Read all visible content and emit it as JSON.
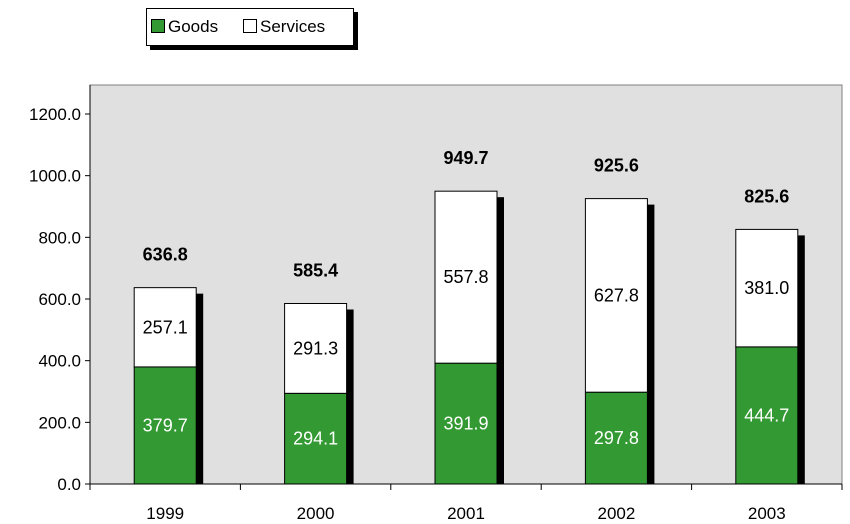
{
  "chart_data": {
    "type": "bar",
    "stacked": true,
    "categories": [
      "1999",
      "2000",
      "2001",
      "2002",
      "2003"
    ],
    "series": [
      {
        "name": "Goods",
        "values": [
          379.7,
          294.1,
          391.9,
          297.8,
          444.7
        ],
        "color": "#339933"
      },
      {
        "name": "Services",
        "values": [
          257.1,
          291.3,
          557.8,
          627.8,
          381.0
        ],
        "color": "#ffffff"
      }
    ],
    "totals": [
      636.8,
      585.4,
      949.7,
      925.6,
      825.6
    ],
    "yticks": [
      "0.0",
      "200.0",
      "400.0",
      "600.0",
      "800.0",
      "1000.0",
      "1200.0"
    ],
    "ylim": [
      0,
      1200
    ],
    "legend": "top-left",
    "plot_background": "#e0e0e0",
    "grid": false
  },
  "legend": {
    "goods_label": "Goods",
    "services_label": "Services"
  }
}
